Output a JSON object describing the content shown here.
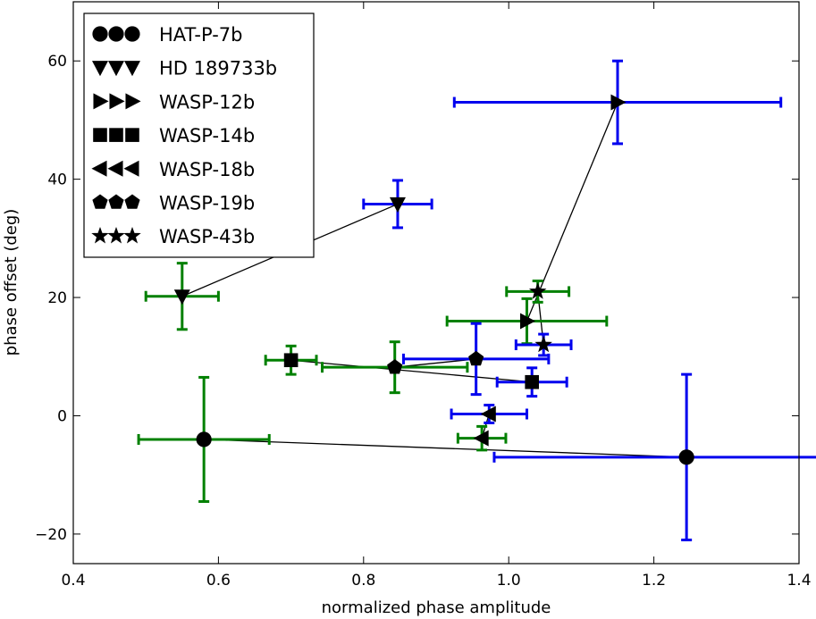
{
  "chart_data": {
    "type": "scatter",
    "title": "",
    "xlabel": "normalized phase amplitude",
    "ylabel": "phase offset (deg)",
    "xlim": [
      0.4,
      1.4
    ],
    "ylim": [
      -25,
      70
    ],
    "xticks": [
      0.4,
      0.6,
      0.8,
      1.0,
      1.2,
      1.4
    ],
    "xtick_labels": [
      "0.4",
      "0.6",
      "0.8",
      "1.0",
      "1.2",
      "1.4"
    ],
    "yticks": [
      -20,
      0,
      20,
      40,
      60
    ],
    "ytick_labels": [
      "−20",
      "0",
      "20",
      "40",
      "60"
    ],
    "grid": false,
    "legend_position": "top-left",
    "colors": {
      "green": "#008000",
      "blue": "#0000ee",
      "marker": "#000000"
    },
    "series": [
      {
        "name": "HAT-P-7b",
        "marker": "circle",
        "points": [
          {
            "x": 0.58,
            "y": -4,
            "xerr": 0.09,
            "yerr": 10.5,
            "color": "green"
          },
          {
            "x": 1.245,
            "y": -7,
            "xerr": 0.265,
            "yerr": 14,
            "color": "blue"
          }
        ]
      },
      {
        "name": "HD 189733b",
        "marker": "triangle-down",
        "points": [
          {
            "x": 0.55,
            "y": 20.2,
            "xerr": 0.05,
            "yerr": 5.6,
            "color": "green"
          },
          {
            "x": 0.847,
            "y": 35.8,
            "xerr": 0.047,
            "yerr": 4,
            "color": "blue"
          }
        ]
      },
      {
        "name": "WASP-12b",
        "marker": "triangle-right",
        "points": [
          {
            "x": 1.025,
            "y": 16,
            "xerr": 0.11,
            "yerr": 3.8,
            "color": "green"
          },
          {
            "x": 1.15,
            "y": 53,
            "xerr": 0.225,
            "yerr": 7,
            "color": "blue"
          }
        ]
      },
      {
        "name": "WASP-14b",
        "marker": "square",
        "points": [
          {
            "x": 0.7,
            "y": 9.4,
            "xerr": 0.035,
            "yerr": 2.4,
            "color": "green"
          },
          {
            "x": 1.032,
            "y": 5.7,
            "xerr": 0.048,
            "yerr": 2.4,
            "color": "blue"
          }
        ]
      },
      {
        "name": "WASP-18b",
        "marker": "triangle-left",
        "points": [
          {
            "x": 0.963,
            "y": -3.8,
            "xerr": 0.033,
            "yerr": 2,
            "color": "green"
          },
          {
            "x": 0.973,
            "y": 0.3,
            "xerr": 0.052,
            "yerr": 1.5,
            "color": "blue"
          }
        ]
      },
      {
        "name": "WASP-19b",
        "marker": "pentagon",
        "points": [
          {
            "x": 0.843,
            "y": 8.2,
            "xerr": 0.1,
            "yerr": 4.3,
            "color": "green"
          },
          {
            "x": 0.955,
            "y": 9.6,
            "xerr": 0.1,
            "yerr": 6,
            "color": "blue"
          }
        ]
      },
      {
        "name": "WASP-43b",
        "marker": "star",
        "points": [
          {
            "x": 1.04,
            "y": 21,
            "xerr": 0.043,
            "yerr": 1.8,
            "color": "green"
          },
          {
            "x": 1.048,
            "y": 12,
            "xerr": 0.038,
            "yerr": 1.8,
            "color": "blue"
          }
        ]
      }
    ]
  }
}
